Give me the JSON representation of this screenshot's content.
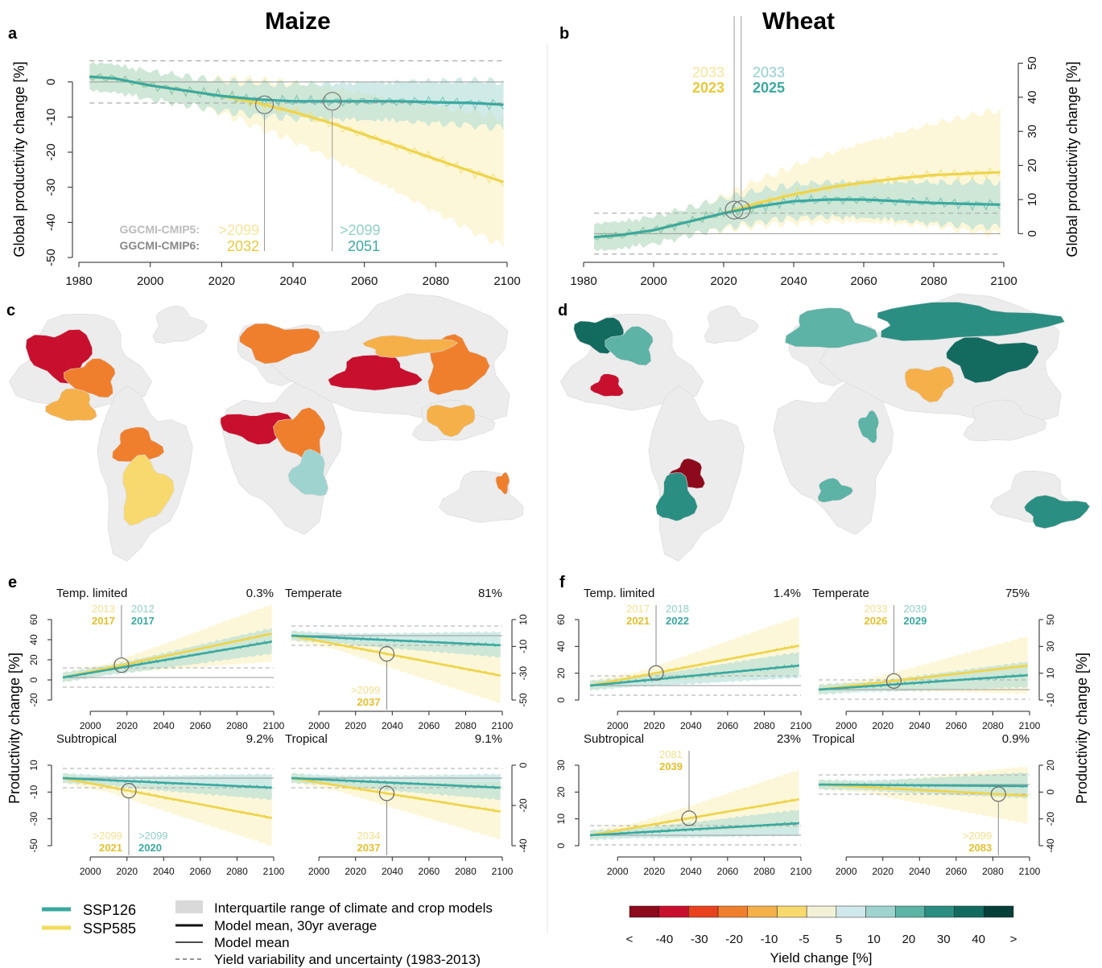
{
  "titles": {
    "left": "Maize",
    "right": "Wheat"
  },
  "panel_letters": [
    "a",
    "b",
    "c",
    "d",
    "e",
    "f"
  ],
  "colors": {
    "ssp126": "#3aa9a0",
    "ssp126_light": "#a9dad4",
    "ssp585": "#f2dc5d",
    "ssp585_light": "#fbf0b9",
    "iqr_grey": "#d9d9d9",
    "land_grey": "#ececec"
  },
  "chart_data": [
    {
      "id": "a",
      "type": "line",
      "crop": "Maize",
      "ylabel": "Global productivity change [%]",
      "xlim": [
        1980,
        2100
      ],
      "ylim": [
        -50,
        5
      ],
      "xticks": [
        1980,
        2000,
        2020,
        2040,
        2060,
        2080,
        2100
      ],
      "yticks": [
        0,
        -10,
        -20,
        -30,
        -40,
        -50
      ],
      "variability_band": [
        -6,
        6
      ],
      "series": [
        {
          "name": "SSP126",
          "x": [
            1983,
            1990,
            2000,
            2010,
            2020,
            2030,
            2040,
            2050,
            2060,
            2070,
            2080,
            2090,
            2099
          ],
          "values": [
            1.5,
            1,
            -1,
            -2.5,
            -4,
            -5,
            -5.5,
            -5.5,
            -5.5,
            -5.5,
            -5.8,
            -6,
            -6.5
          ]
        },
        {
          "name": "SSP585",
          "x": [
            1983,
            1990,
            2000,
            2010,
            2020,
            2030,
            2040,
            2050,
            2060,
            2070,
            2080,
            2090,
            2099
          ],
          "values": [
            1.5,
            1,
            -1,
            -2.5,
            -4,
            -6,
            -8.5,
            -11.5,
            -15,
            -18.5,
            -22,
            -25.5,
            -28.5
          ]
        }
      ],
      "emergence_years": {
        "ssp126": 2051,
        "ssp585": 2032
      },
      "annotation": {
        "cmip5_label": "GGCMI-CMIP5:",
        "cmip6_label": "GGCMI-CMIP6:",
        "ssp585_cmip5": ">2099",
        "ssp585_cmip6": "2032",
        "ssp126_cmip5": ">2099",
        "ssp126_cmip6": "2051"
      }
    },
    {
      "id": "b",
      "type": "line",
      "crop": "Wheat",
      "ylabel": "Global productivity change [%]",
      "xlim": [
        1980,
        2100
      ],
      "ylim": [
        -7,
        52
      ],
      "xticks": [
        1980,
        2000,
        2020,
        2040,
        2060,
        2080,
        2100
      ],
      "yticks": [
        0,
        10,
        20,
        30,
        40,
        50
      ],
      "variability_band": [
        -6,
        6
      ],
      "series": [
        {
          "name": "SSP126",
          "x": [
            1983,
            1990,
            2000,
            2010,
            2020,
            2030,
            2040,
            2050,
            2060,
            2070,
            2080,
            2090,
            2099
          ],
          "values": [
            -1,
            -0.5,
            1,
            3.5,
            6,
            8,
            9.5,
            10,
            10,
            9.5,
            9,
            8.7,
            8.5
          ]
        },
        {
          "name": "SSP585",
          "x": [
            1983,
            1990,
            2000,
            2010,
            2020,
            2030,
            2040,
            2050,
            2060,
            2070,
            2080,
            2090,
            2099
          ],
          "values": [
            -1,
            -0.5,
            1,
            3.5,
            6,
            9,
            11.5,
            13.5,
            15,
            16.2,
            17.2,
            17.6,
            18
          ]
        }
      ],
      "emergence_years": {
        "ssp126": 2025,
        "ssp585": 2023
      },
      "annotation": {
        "ssp585_cmip5": "2033",
        "ssp585_cmip6": "2023",
        "ssp126_cmip5": "2033",
        "ssp126_cmip6": "2025"
      }
    }
  ],
  "maps": {
    "c": "Maize yield change map",
    "d": "Wheat yield change map"
  },
  "small_panels": {
    "e": [
      {
        "name": "Temp. limited",
        "pct": "0.3%",
        "c5_585": "2013",
        "c6_585": "2017",
        "c5_126": "2012",
        "c6_126": "2017",
        "yticks": [
          "60",
          "40",
          "20",
          "0",
          "-20"
        ],
        "axis": "left"
      },
      {
        "name": "Temperate",
        "pct": "81%",
        "c5_585": ">2099",
        "c6_585": "2037",
        "yticks": [
          "10",
          "-10",
          "-30",
          "-50"
        ],
        "axis": "right"
      },
      {
        "name": "Subtropical",
        "pct": "9.2%",
        "c5_585": ">2099",
        "c6_585": "2021",
        "c5_126": ">2099",
        "c6_126": "2020",
        "yticks": [
          "10",
          "-10",
          "-30",
          "-50"
        ],
        "axis": "left"
      },
      {
        "name": "Tropical",
        "pct": "9.1%",
        "c5_585": "2034",
        "c6_585": "2037",
        "yticks": [
          "0",
          "-20",
          "-40"
        ],
        "axis": "right"
      }
    ],
    "f": [
      {
        "name": "Temp. limited",
        "pct": "1.4%",
        "c5_585": "2017",
        "c6_585": "2021",
        "c5_126": "2018",
        "c6_126": "2022",
        "yticks": [
          "60",
          "40",
          "20",
          "0"
        ],
        "axis": "left"
      },
      {
        "name": "Temperate",
        "pct": "75%",
        "c5_585": "2033",
        "c6_585": "2026",
        "c5_126": "2039",
        "c6_126": "2029",
        "yticks": [
          "50",
          "30",
          "10",
          "-10"
        ],
        "axis": "right"
      },
      {
        "name": "Subtropical",
        "pct": "23%",
        "c5_585": "2081",
        "c6_585": "2039",
        "yticks": [
          "30",
          "20",
          "10",
          "0"
        ],
        "axis": "left"
      },
      {
        "name": "Tropical",
        "pct": "0.9%",
        "c5_585": ">2099",
        "c6_585": "2083",
        "yticks": [
          "20",
          "0",
          "-20",
          "-40"
        ],
        "axis": "right"
      }
    ],
    "xticks": [
      "2000",
      "2020",
      "2040",
      "2060",
      "2080",
      "2100"
    ]
  },
  "small_ylabel": {
    "left": "Productivity change [%]",
    "right": "Productivity change [%]"
  },
  "legend": {
    "ssp126": "SSP126",
    "ssp585": "SSP585",
    "iqr": "Interquartile range of climate and crop models",
    "mean30": "Model mean, 30yr average",
    "mean": "Model mean",
    "variability": "Yield variability and uncertainty (1983-2013)"
  },
  "colorbar": {
    "title": "Yield change [%]",
    "labels": [
      "<",
      "-40",
      "-30",
      "-20",
      "-10",
      "-5",
      "5",
      "10",
      "20",
      "30",
      "40",
      ">"
    ],
    "colors": [
      "#8c0a1c",
      "#c8102e",
      "#e8431e",
      "#f07f2d",
      "#f5b04a",
      "#f8d96e",
      "#f2f0d6",
      "#cfe8ea",
      "#9fd3cf",
      "#5cb3a6",
      "#2a8f82",
      "#136b60",
      "#063f38"
    ]
  }
}
